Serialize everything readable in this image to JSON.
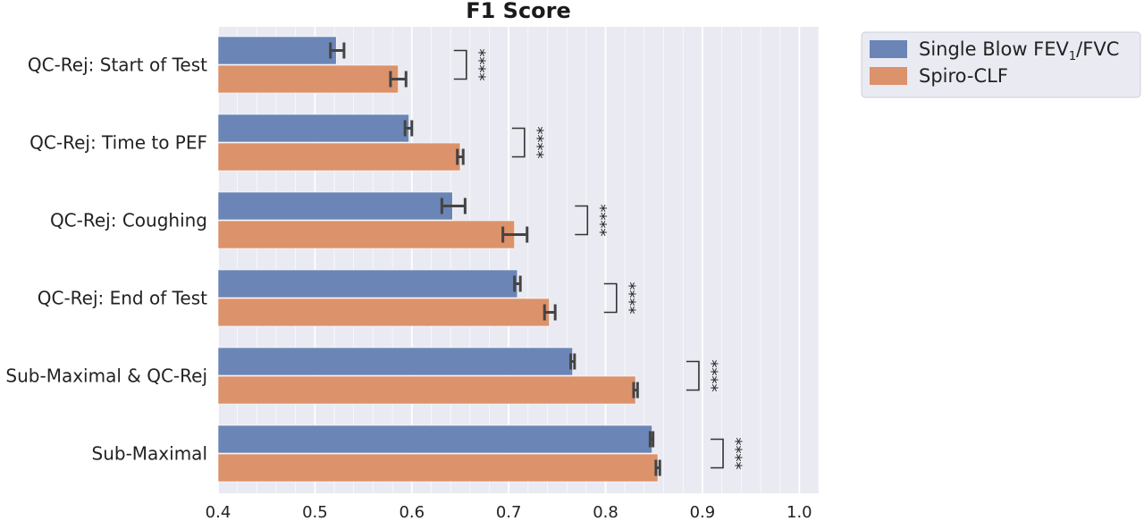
{
  "chart_data": {
    "type": "bar",
    "orientation": "horizontal",
    "title": "F1 Score",
    "categories": [
      "QC-Rej: Start of Test",
      "QC-Rej: Time to PEF",
      "QC-Rej: Coughing",
      "QC-Rej: End of Test",
      "Sub-Maximal & QC-Rej",
      "Sub-Maximal"
    ],
    "series": [
      {
        "name": "Single Blow FEV1/FVC",
        "legend_main": "Single Blow FEV",
        "legend_sub": "1",
        "legend_rest": "/FVC",
        "color": "#6b85b6",
        "values": [
          0.522,
          0.597,
          0.642,
          0.709,
          0.766,
          0.848
        ],
        "error_low": [
          0.516,
          0.593,
          0.631,
          0.706,
          0.764,
          0.846
        ],
        "error_high": [
          0.53,
          0.6,
          0.655,
          0.712,
          0.768,
          0.849
        ]
      },
      {
        "name": "Spiro-CLF",
        "color": "#dc926a",
        "values": [
          0.586,
          0.65,
          0.706,
          0.742,
          0.831,
          0.854
        ],
        "error_low": [
          0.578,
          0.647,
          0.694,
          0.737,
          0.829,
          0.852
        ],
        "error_high": [
          0.594,
          0.653,
          0.719,
          0.748,
          0.833,
          0.856
        ]
      }
    ],
    "significance": [
      "****",
      "****",
      "****",
      "****",
      "****",
      "****"
    ],
    "significance_x": [
      0.66,
      0.72,
      0.785,
      0.815,
      0.9,
      0.925
    ],
    "xlim": [
      0.4,
      1.02
    ],
    "xticks": [
      "0.4",
      "0.5",
      "0.6",
      "0.7",
      "0.8",
      "0.9",
      "1.0"
    ],
    "xtick_values": [
      0.4,
      0.5,
      0.6,
      0.7,
      0.8,
      0.9,
      1.0
    ],
    "minor_step": 0.02,
    "grid": true,
    "legend_position": "outside-top-right",
    "colors": {
      "plot_bg": "#eaeaf2",
      "grid": "#ffffff",
      "error_bar": "#444444"
    }
  }
}
